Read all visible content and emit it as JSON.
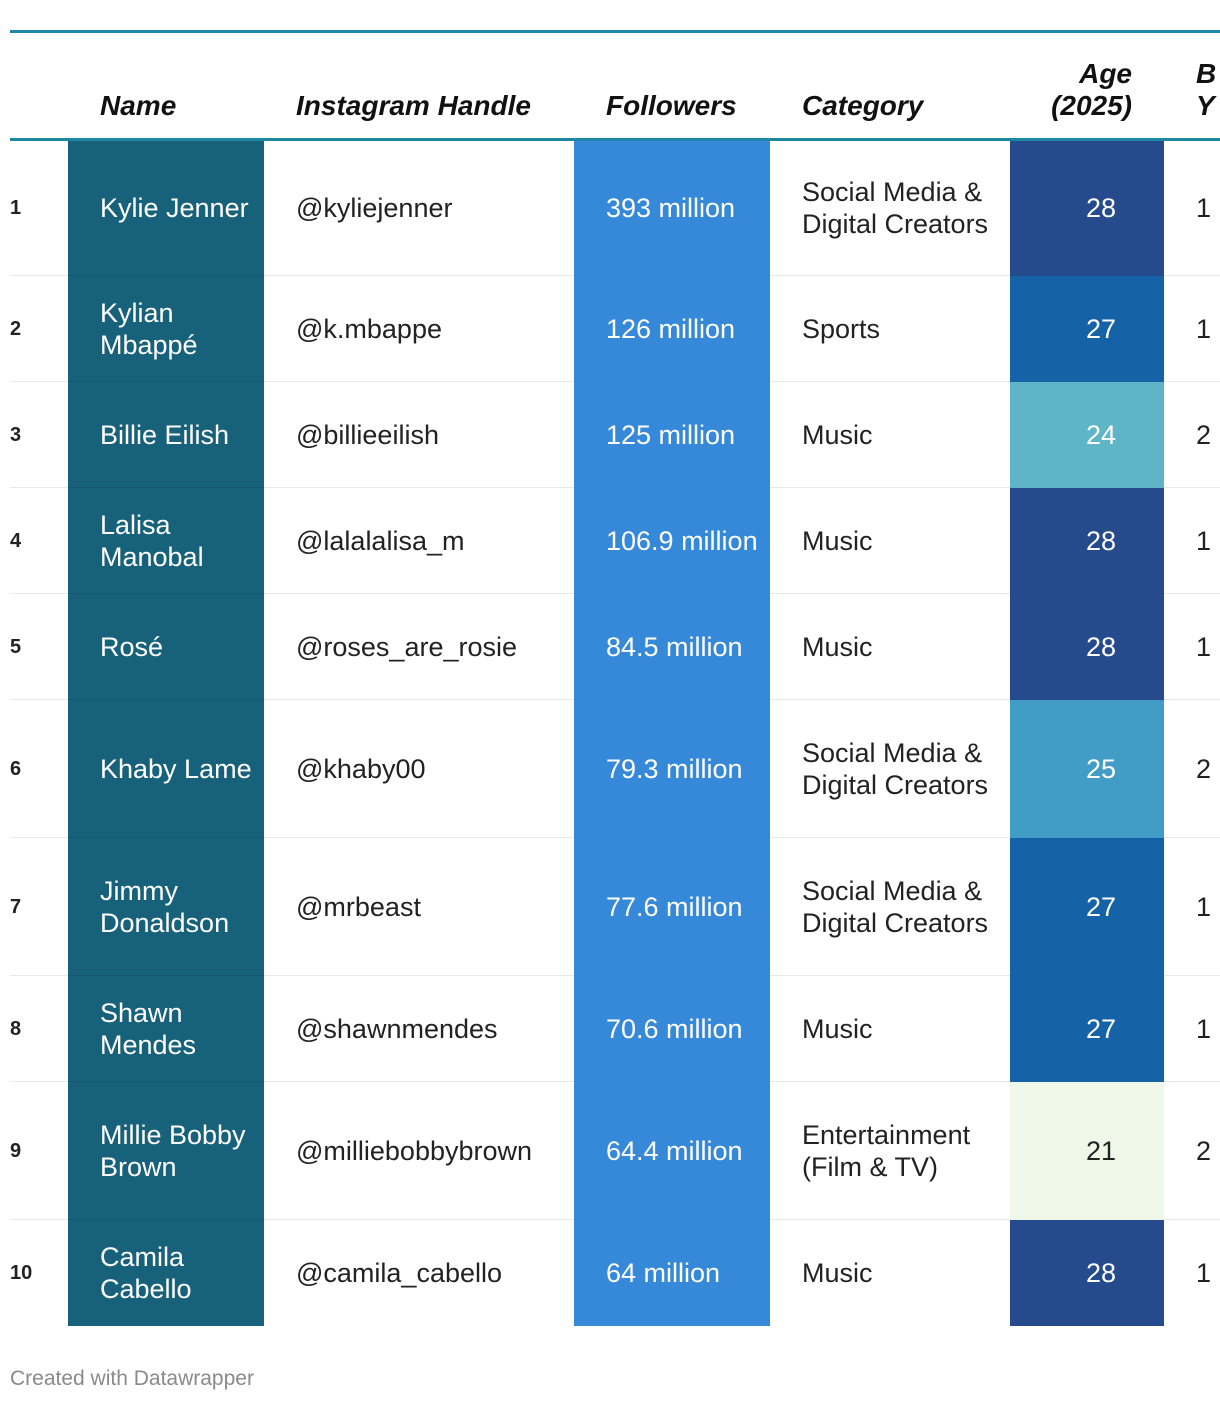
{
  "headers": {
    "rank": "",
    "name": "Name",
    "handle": "Instagram Handle",
    "followers": "Followers",
    "category": "Category",
    "age_line1": "Age",
    "age_line2": "(2025)",
    "last_line1": "B",
    "last_line2": "Y"
  },
  "rows": [
    {
      "rank": "1",
      "name": "Kylie Jenner",
      "handle": "@kyliejenner",
      "followers": "393 million",
      "category": "Social Media & Digital Creators",
      "age": "28",
      "age_color": "#254b8c",
      "age_text": "#ffffff",
      "last": "1",
      "h": 136
    },
    {
      "rank": "2",
      "name": "Kylian Mbappé",
      "handle": "@k.mbappe",
      "followers": "126 million",
      "category": "Sports",
      "age": "27",
      "age_color": "#1562a7",
      "age_text": "#ffffff",
      "last": "1",
      "h": 106
    },
    {
      "rank": "3",
      "name": "Billie Eilish",
      "handle": "@billieeilish",
      "followers": "125 million",
      "category": "Music",
      "age": "24",
      "age_color": "#5fb5c8",
      "age_text": "#ffffff",
      "last": "2",
      "h": 106
    },
    {
      "rank": "4",
      "name": "Lalisa Manobal",
      "handle": "@lalalalisa_m",
      "followers": "106.9 million",
      "category": "Music",
      "age": "28",
      "age_color": "#254b8c",
      "age_text": "#ffffff",
      "last": "1",
      "h": 106
    },
    {
      "rank": "5",
      "name": "Rosé",
      "handle": "@roses_are_rosie",
      "followers": "84.5 million",
      "category": "Music",
      "age": "28",
      "age_color": "#254b8c",
      "age_text": "#ffffff",
      "last": "1",
      "h": 106
    },
    {
      "rank": "6",
      "name": "Khaby Lame",
      "handle": "@khaby00",
      "followers": "79.3 million",
      "category": "Social Media & Digital Creators",
      "age": "25",
      "age_color": "#419dc5",
      "age_text": "#ffffff",
      "last": "2",
      "h": 138
    },
    {
      "rank": "7",
      "name": "Jimmy Donaldson",
      "handle": "@mrbeast",
      "followers": "77.6 million",
      "category": "Social Media & Digital Creators",
      "age": "27",
      "age_color": "#1562a7",
      "age_text": "#ffffff",
      "last": "1",
      "h": 138
    },
    {
      "rank": "8",
      "name": "Shawn Mendes",
      "handle": "@shawnmendes",
      "followers": "70.6 million",
      "category": "Music",
      "age": "27",
      "age_color": "#1562a7",
      "age_text": "#ffffff",
      "last": "1",
      "h": 106
    },
    {
      "rank": "9",
      "name": "Millie Bobby Brown",
      "handle": "@milliebobbybrown",
      "followers": "64.4 million",
      "category": "Entertainment (Film & TV)",
      "age": "21",
      "age_color": "#eef7e8",
      "age_text": "#222222",
      "last": "2",
      "h": 138
    },
    {
      "rank": "10",
      "name": "Camila Cabello",
      "handle": "@camila_cabello",
      "followers": "64 million",
      "category": "Music",
      "age": "28",
      "age_color": "#254b8c",
      "age_text": "#ffffff",
      "last": "1",
      "h": 106
    }
  ],
  "footer": "Created with Datawrapper"
}
